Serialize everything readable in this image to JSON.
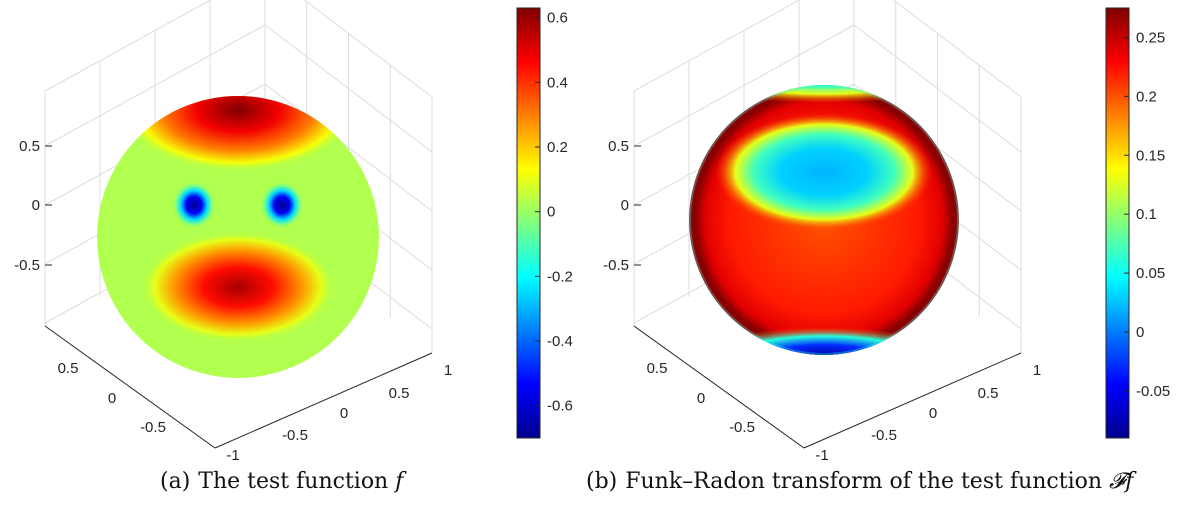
{
  "chart_data": [
    {
      "type": "surface",
      "caption_tag": "(a)",
      "caption_text": "The test function ",
      "caption_math": "f",
      "axes": {
        "z_ticks": [
          "0.5",
          "0",
          "-0.5"
        ],
        "x_ticks": [
          "0.5",
          "0",
          "-0.5"
        ],
        "y_ticks": [
          "1",
          "0.5",
          "0",
          "-0.5",
          "-1"
        ],
        "grid": true
      },
      "colorbar": {
        "colormap": "jet",
        "clim": [
          -0.7,
          0.63
        ],
        "ticks": [
          "0.6",
          "0.4",
          "0.2",
          "0",
          "-0.2",
          "-0.4",
          "-0.6"
        ],
        "tick_values": [
          0.6,
          0.4,
          0.2,
          0,
          -0.2,
          -0.4,
          -0.6
        ]
      },
      "features": {
        "background_value": 0.03,
        "forehead_band_max": 0.63,
        "mouth_max": 0.58,
        "eye_min": -0.7
      }
    },
    {
      "type": "surface",
      "caption_tag": "(b)",
      "caption_text": "Funk–Radon transform of the test function ",
      "caption_math": "𝓕f",
      "axes": {
        "z_ticks": [
          "0.5",
          "0",
          "-0.5"
        ],
        "x_ticks": [
          "0.5",
          "0",
          "-0.5"
        ],
        "y_ticks": [
          "1",
          "0.5",
          "0",
          "-0.5",
          "-1"
        ],
        "grid": true
      },
      "colorbar": {
        "colormap": "jet",
        "clim": [
          -0.09,
          0.275
        ],
        "ticks": [
          "0.25",
          "0.2",
          "0.15",
          "0.1",
          "0.05",
          "0",
          "-0.05"
        ],
        "tick_values": [
          0.25,
          0.2,
          0.15,
          0.1,
          0.05,
          0,
          -0.05
        ]
      },
      "features": {
        "body_value": 0.2,
        "upper_blob_min": 0.02,
        "rim_max": 0.275,
        "bottom_min": -0.09
      }
    }
  ]
}
